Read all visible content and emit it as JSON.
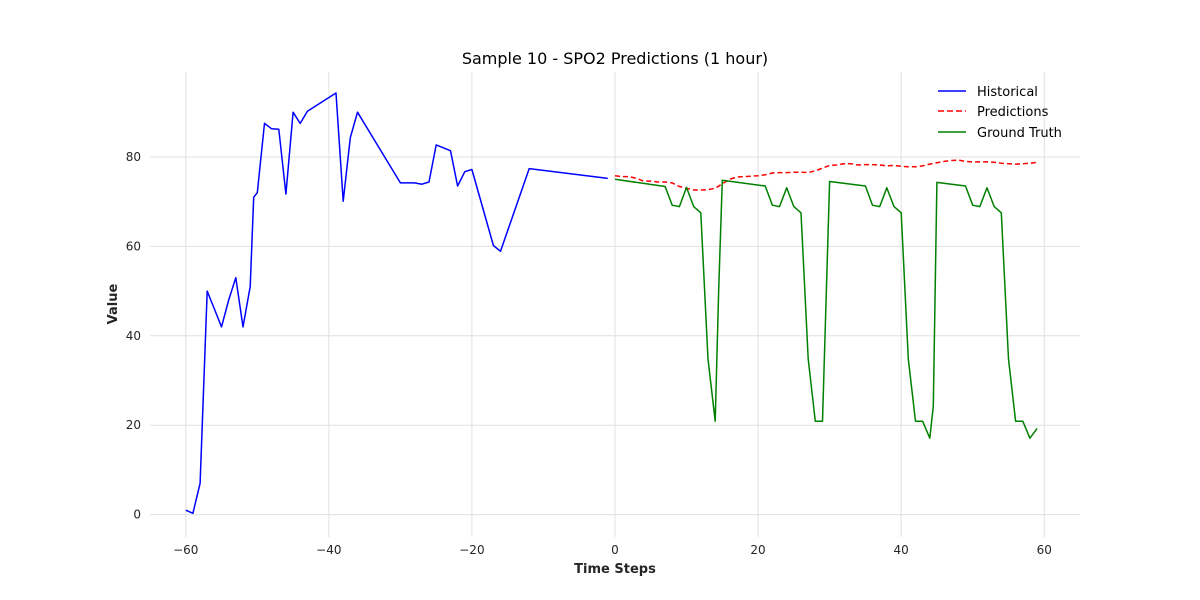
{
  "chart_data": {
    "type": "line",
    "title": "Sample 10 - SPO2 Predictions (1 hour)",
    "xlabel": "Time Steps",
    "ylabel": "Value",
    "xlim": [
      -65,
      65
    ],
    "ylim": [
      -5,
      99
    ],
    "xticks": [
      -60,
      -40,
      -20,
      0,
      20,
      40,
      60
    ],
    "xtick_labels": [
      "−60",
      "−40",
      "−20",
      "0",
      "20",
      "40",
      "60"
    ],
    "yticks": [
      0,
      20,
      40,
      60,
      80
    ],
    "ytick_labels": [
      "0",
      "20",
      "40",
      "60",
      "80"
    ],
    "grid": true,
    "legend_position": "top-right",
    "series": [
      {
        "name": "Historical",
        "color": "#0000ff",
        "style": "solid",
        "x": [
          -60,
          -59,
          -58,
          -57,
          -56,
          -55,
          -54,
          -53,
          -52,
          -51,
          -50.5,
          -50,
          -49,
          -48,
          -47,
          -46,
          -45,
          -44,
          -43,
          -39,
          -38,
          -37,
          -36,
          -30,
          -28,
          -27,
          -26,
          -25,
          -23,
          -22,
          -21,
          -20,
          -17,
          -16,
          -12,
          -1
        ],
        "y": [
          1,
          0.3,
          7,
          50,
          46,
          42,
          48,
          53,
          42,
          51,
          71,
          72,
          87.5,
          86.3,
          86.2,
          71.7,
          90,
          87.5,
          90.2,
          94.3,
          70.1,
          84.3,
          90,
          74.2,
          74.2,
          73.9,
          74.4,
          82.7,
          81.4,
          73.5,
          76.7,
          77.2,
          60.2,
          58.9,
          77.4,
          75.2
        ]
      },
      {
        "name": "Predictions",
        "color": "#ff0000",
        "style": "dashed",
        "x": [
          0,
          1,
          2,
          3,
          4,
          5,
          6,
          7,
          8,
          9,
          10,
          11,
          12,
          13,
          14,
          15,
          16,
          17,
          18,
          19,
          20,
          21,
          22,
          23,
          24,
          25,
          26,
          27,
          28,
          29,
          30,
          31,
          32,
          33,
          34,
          35,
          36,
          37,
          38,
          39,
          40,
          41,
          42,
          43,
          44,
          45,
          46,
          47,
          48,
          49,
          50,
          51,
          52,
          53,
          54,
          55,
          56,
          57,
          58,
          59
        ],
        "y": [
          75.8,
          75.6,
          75.6,
          75.2,
          74.6,
          74.6,
          74.4,
          74.4,
          74.2,
          73.4,
          73.0,
          72.6,
          72.6,
          72.7,
          73.0,
          74.0,
          75.0,
          75.5,
          75.6,
          75.7,
          75.8,
          76.0,
          76.4,
          76.5,
          76.5,
          76.6,
          76.6,
          76.5,
          76.9,
          77.5,
          78.1,
          78.2,
          78.5,
          78.5,
          78.2,
          78.3,
          78.3,
          78.2,
          78.0,
          78.1,
          77.9,
          77.8,
          77.8,
          78.0,
          78.4,
          78.7,
          79.0,
          79.2,
          79.3,
          79.0,
          78.9,
          78.9,
          78.9,
          78.8,
          78.6,
          78.5,
          78.4,
          78.5,
          78.6,
          78.8
        ]
      },
      {
        "name": "Ground Truth",
        "color": "#008000",
        "style": "solid",
        "x": [
          0,
          7,
          8,
          9,
          10,
          11,
          12,
          13,
          14,
          14.5,
          15,
          21,
          22,
          23,
          24,
          25,
          26,
          27,
          28,
          29,
          30,
          35,
          36,
          37,
          38,
          39,
          40,
          41,
          42,
          43,
          44,
          44.5,
          45,
          49,
          50,
          51,
          52,
          53,
          54,
          55,
          56,
          57,
          58,
          59
        ],
        "y": [
          75,
          73.4,
          69.2,
          68.9,
          73.2,
          68.9,
          67.5,
          34.8,
          20.9,
          50.4,
          74.8,
          73.5,
          69.2,
          68.9,
          73.1,
          68.9,
          67.5,
          34.8,
          20.9,
          20.9,
          74.5,
          73.5,
          69.2,
          68.9,
          73.1,
          68.9,
          67.5,
          34.8,
          20.9,
          20.9,
          17.1,
          24.3,
          74.3,
          73.5,
          69.2,
          68.9,
          73.1,
          68.9,
          67.5,
          34.8,
          20.9,
          20.9,
          17.1,
          19.3
        ]
      }
    ]
  }
}
